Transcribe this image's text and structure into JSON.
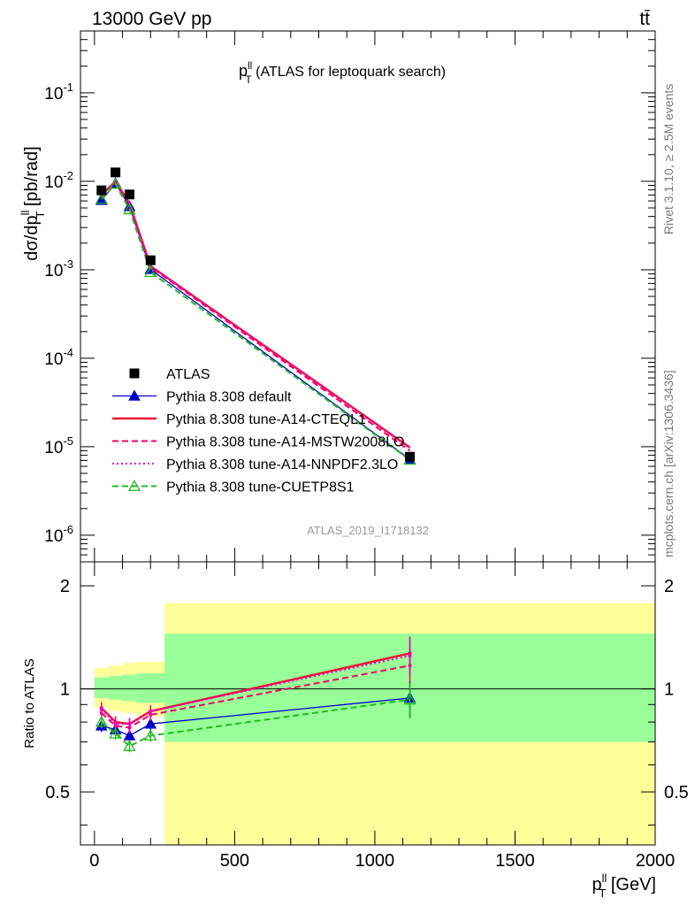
{
  "header": {
    "energy_label": "13000 GeV pp",
    "process_label": "tt̄",
    "side_label_top": "Rivet 3.1.10, ≥ 2.5M events",
    "side_label_bottom": "mcplots.cern.ch [arXiv:1306.3436]",
    "analysis_id": "ATLAS_2019_I1718132"
  },
  "chart_data": [
    {
      "type": "line",
      "title_main": "p",
      "title_sup": "ll",
      "title_sub": "T",
      "title_rest": " (ATLAS for leptoquark search)",
      "ylabel": "dσ/dp_T^ll [pb/rad]",
      "yscale": "log",
      "ylim": [
        5e-07,
        0.5
      ],
      "xlim": [
        -50,
        2000
      ],
      "yticks": [
        "10^-6",
        "10^-5",
        "10^-4",
        "10^-3",
        "10^-2",
        "10^-1"
      ],
      "legend_position": "center-left",
      "x": [
        25,
        75,
        125,
        200,
        1125
      ],
      "data": {
        "name": "ATLAS",
        "values": [
          0.0079,
          0.0126,
          0.0071,
          0.00128,
          7.7e-06
        ]
      },
      "series": [
        {
          "name": "Pythia 8.308 default",
          "color": "#0000cc",
          "style": "solid",
          "marker": "triangle-filled",
          "values": [
            0.0061,
            0.0095,
            0.0052,
            0.00101,
            7.2e-06
          ]
        },
        {
          "name": "Pythia 8.308 tune-A14-CTEQL1",
          "color": "#ee1133",
          "style": "solid",
          "marker": "none",
          "values": [
            0.007,
            0.01,
            0.0056,
            0.0011,
            9.8e-06
          ]
        },
        {
          "name": "Pythia 8.308 tune-A14-MSTW2008LO",
          "color": "#ee0066",
          "style": "dashed",
          "marker": "none",
          "values": [
            0.0067,
            0.0098,
            0.0055,
            0.00107,
            9e-06
          ]
        },
        {
          "name": "Pythia 8.308 tune-A14-NNPDF2.3LO",
          "color": "#ee00cc",
          "style": "dotted",
          "marker": "none",
          "values": [
            0.0069,
            0.01,
            0.0056,
            0.0011,
            9.6e-06
          ]
        },
        {
          "name": "Pythia 8.308 tune-CUETP8S1",
          "color": "#22bb22",
          "style": "dashed",
          "marker": "triangle-open",
          "values": [
            0.0063,
            0.0093,
            0.0048,
            0.00094,
            7.1e-06
          ]
        }
      ]
    },
    {
      "type": "line",
      "ylabel": "Ratio to ATLAS",
      "xlabel": "p_T^ll [GeV]",
      "xlim": [
        -50,
        2000
      ],
      "ylim": [
        0.35,
        2.35
      ],
      "yscale": "log",
      "yticks": [
        0.5,
        1,
        2
      ],
      "xticks": [
        0,
        500,
        1000,
        1500,
        2000
      ],
      "bands": [
        {
          "x0": 0,
          "x1": 50,
          "green": [
            0.94,
            1.08
          ],
          "yellow": [
            0.88,
            1.15
          ]
        },
        {
          "x0": 50,
          "x1": 100,
          "green": [
            0.93,
            1.09
          ],
          "yellow": [
            0.86,
            1.17
          ]
        },
        {
          "x0": 100,
          "x1": 150,
          "green": [
            0.92,
            1.1
          ],
          "yellow": [
            0.85,
            1.19
          ]
        },
        {
          "x0": 150,
          "x1": 250,
          "green": [
            0.91,
            1.11
          ],
          "yellow": [
            0.83,
            1.2
          ]
        },
        {
          "x0": 250,
          "x1": 2000,
          "green": [
            0.7,
            1.45
          ],
          "yellow": [
            0.35,
            1.78
          ]
        }
      ],
      "x": [
        25,
        75,
        125,
        200,
        1125
      ],
      "series": [
        {
          "name": "Pythia 8.308 default",
          "values": [
            0.78,
            0.76,
            0.73,
            0.79,
            0.94
          ]
        },
        {
          "name": "Pythia 8.308 tune-A14-CTEQL1",
          "values": [
            0.88,
            0.8,
            0.79,
            0.86,
            1.27
          ]
        },
        {
          "name": "Pythia 8.308 tune-A14-MSTW2008LO",
          "values": [
            0.85,
            0.78,
            0.77,
            0.84,
            1.17
          ]
        },
        {
          "name": "Pythia 8.308 tune-A14-NNPDF2.3LO",
          "values": [
            0.87,
            0.79,
            0.79,
            0.86,
            1.25
          ]
        },
        {
          "name": "Pythia 8.308 tune-CUETP8S1",
          "values": [
            0.8,
            0.74,
            0.68,
            0.73,
            0.93
          ]
        }
      ]
    }
  ]
}
